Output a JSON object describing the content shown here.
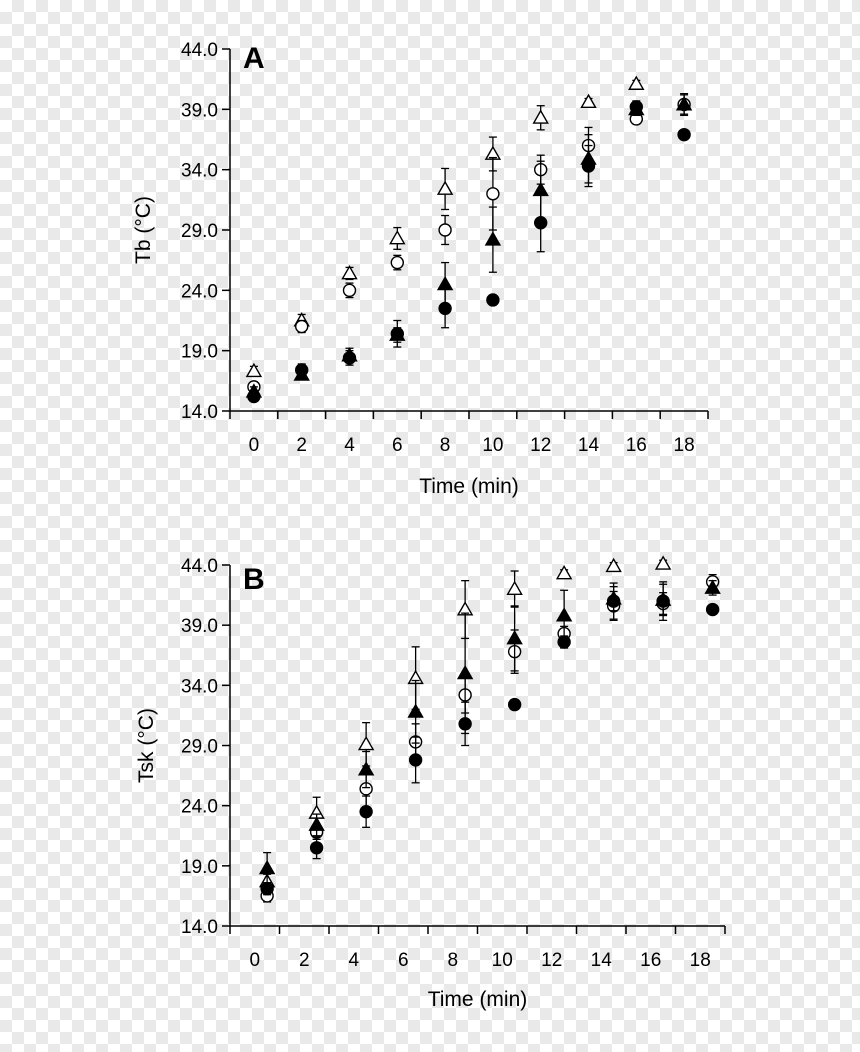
{
  "chart_data": [
    {
      "type": "scatter",
      "panel_label": "A",
      "title": "",
      "xlabel": "Time (min)",
      "ylabel": "Tb (°C)",
      "ylim": [
        14.0,
        44.0
      ],
      "xlim": [
        -1,
        19
      ],
      "x_ticks": [
        0,
        2,
        4,
        6,
        8,
        10,
        12,
        14,
        16,
        18
      ],
      "y_ticks": [
        "14.0",
        "19.0",
        "24.0",
        "29.0",
        "34.0",
        "39.0",
        "44.0"
      ],
      "grid": false,
      "legend": "none",
      "series": [
        {
          "marker": "open-triangle",
          "points": [
            {
              "x": 0,
              "y": 17.3,
              "err": 0.4
            },
            {
              "x": 2,
              "y": 21.5,
              "err": 0.5
            },
            {
              "x": 4,
              "y": 25.4,
              "err": 0.5
            },
            {
              "x": 6,
              "y": 28.3,
              "err": 0.9
            },
            {
              "x": 8,
              "y": 32.4,
              "err": 1.7
            },
            {
              "x": 10,
              "y": 35.3,
              "err": 1.4
            },
            {
              "x": 12,
              "y": 38.3,
              "err": 1.0
            },
            {
              "x": 14,
              "y": 39.6,
              "err": 0.3
            },
            {
              "x": 16,
              "y": 41.1,
              "err": 0.3
            }
          ]
        },
        {
          "marker": "open-circle",
          "points": [
            {
              "x": 0,
              "y": 16.0,
              "err": 0.4
            },
            {
              "x": 2,
              "y": 21.0,
              "err": 0.5
            },
            {
              "x": 4,
              "y": 24.0,
              "err": 0.6
            },
            {
              "x": 6,
              "y": 26.3,
              "err": 0.6
            },
            {
              "x": 8,
              "y": 29.0,
              "err": 1.2
            },
            {
              "x": 10,
              "y": 32.0,
              "err": 3.0
            },
            {
              "x": 12,
              "y": 34.0,
              "err": 1.2
            },
            {
              "x": 14,
              "y": 36.0,
              "err": 1.5
            },
            {
              "x": 16,
              "y": 38.2,
              "err": 0.4
            },
            {
              "x": 18,
              "y": 39.4,
              "err": 0.8
            }
          ]
        },
        {
          "marker": "filled-triangle",
          "points": [
            {
              "x": 0,
              "y": 15.6,
              "err": 0.4
            },
            {
              "x": 2,
              "y": 17.0,
              "err": 0.3
            },
            {
              "x": 4,
              "y": 18.6,
              "err": 0.6
            },
            {
              "x": 6,
              "y": 20.3,
              "err": 0.6
            },
            {
              "x": 8,
              "y": 24.5,
              "err": 1.8
            },
            {
              "x": 10,
              "y": 28.2,
              "err": 2.7
            },
            {
              "x": 12,
              "y": 32.3,
              "err": 2.4
            },
            {
              "x": 14,
              "y": 34.9,
              "err": 2.0
            },
            {
              "x": 16,
              "y": 39.0,
              "err": 0.5
            },
            {
              "x": 18,
              "y": 39.4,
              "err": 0.9
            }
          ]
        },
        {
          "marker": "filled-circle",
          "points": [
            {
              "x": 0,
              "y": 15.2,
              "err": 0.3
            },
            {
              "x": 2,
              "y": 17.4,
              "err": 0.5
            },
            {
              "x": 4,
              "y": 18.4,
              "err": 0.6
            },
            {
              "x": 6,
              "y": 20.4,
              "err": 1.1
            },
            {
              "x": 8,
              "y": 22.5,
              "err": 1.6
            },
            {
              "x": 10,
              "y": 23.2,
              "err": 0.3
            },
            {
              "x": 12,
              "y": 29.6,
              "err": 2.4
            },
            {
              "x": 14,
              "y": 34.3,
              "err": 1.7
            },
            {
              "x": 16,
              "y": 39.2,
              "err": 0.5
            },
            {
              "x": 18,
              "y": 36.9,
              "err": 0.3
            }
          ]
        }
      ]
    },
    {
      "type": "scatter",
      "panel_label": "B",
      "title": "",
      "xlabel": "Time (min)",
      "ylabel": "Tsk (°C)",
      "ylim": [
        14.0,
        44.0
      ],
      "xlim": [
        -1,
        19
      ],
      "x_ticks": [
        0,
        2,
        4,
        6,
        8,
        10,
        12,
        14,
        16,
        18
      ],
      "y_ticks": [
        "14.0",
        "19.0",
        "24.0",
        "29.0",
        "34.0",
        "39.0",
        "44.0"
      ],
      "grid": false,
      "legend": "none",
      "series": [
        {
          "marker": "open-triangle",
          "points": [
            {
              "x": 0.5,
              "y": 17.7,
              "err": 0.6
            },
            {
              "x": 2.5,
              "y": 23.4,
              "err": 1.3
            },
            {
              "x": 4.5,
              "y": 29.1,
              "err": 1.8
            },
            {
              "x": 6.5,
              "y": 34.6,
              "err": 2.6
            },
            {
              "x": 8.5,
              "y": 40.3,
              "err": 2.4
            },
            {
              "x": 10.5,
              "y": 42.0,
              "err": 1.5
            },
            {
              "x": 12.5,
              "y": 43.3,
              "err": 0.3
            },
            {
              "x": 14.5,
              "y": 43.9,
              "err": 0.3
            },
            {
              "x": 16.5,
              "y": 44.1,
              "err": 0.3
            }
          ]
        },
        {
          "marker": "open-circle",
          "points": [
            {
              "x": 0.5,
              "y": 16.5,
              "err": 0.5
            },
            {
              "x": 2.5,
              "y": 21.8,
              "err": 0.6
            },
            {
              "x": 4.5,
              "y": 25.4,
              "err": 1.5
            },
            {
              "x": 6.5,
              "y": 29.3,
              "err": 1.5
            },
            {
              "x": 8.5,
              "y": 33.2,
              "err": 1.5
            },
            {
              "x": 10.5,
              "y": 36.8,
              "err": 1.8
            },
            {
              "x": 12.5,
              "y": 38.3,
              "err": 0.6
            },
            {
              "x": 14.5,
              "y": 40.6,
              "err": 1.2
            },
            {
              "x": 16.5,
              "y": 40.8,
              "err": 0.9
            },
            {
              "x": 18.5,
              "y": 42.6,
              "err": 0.6
            }
          ]
        },
        {
          "marker": "filled-triangle",
          "points": [
            {
              "x": 0.5,
              "y": 18.8,
              "err": 1.3
            },
            {
              "x": 2.5,
              "y": 22.4,
              "err": 0.9
            },
            {
              "x": 4.5,
              "y": 27.0,
              "err": 1.5
            },
            {
              "x": 6.5,
              "y": 31.8,
              "err": 2.6
            },
            {
              "x": 8.5,
              "y": 35.0,
              "err": 5.0
            },
            {
              "x": 10.5,
              "y": 37.9,
              "err": 2.7
            },
            {
              "x": 12.5,
              "y": 39.8,
              "err": 2.1
            },
            {
              "x": 14.5,
              "y": 41.2,
              "err": 1.0
            },
            {
              "x": 16.5,
              "y": 41.1,
              "err": 1.3
            },
            {
              "x": 18.5,
              "y": 42.1,
              "err": 0.6
            }
          ]
        },
        {
          "marker": "filled-circle",
          "points": [
            {
              "x": 0.5,
              "y": 17.1,
              "err": 0.5
            },
            {
              "x": 2.5,
              "y": 20.5,
              "err": 0.9
            },
            {
              "x": 4.5,
              "y": 23.5,
              "err": 1.3
            },
            {
              "x": 6.5,
              "y": 27.8,
              "err": 1.9
            },
            {
              "x": 8.5,
              "y": 30.8,
              "err": 1.8
            },
            {
              "x": 10.5,
              "y": 32.4,
              "err": 0.4
            },
            {
              "x": 12.5,
              "y": 37.6,
              "err": 0.5
            },
            {
              "x": 14.5,
              "y": 41.0,
              "err": 1.5
            },
            {
              "x": 16.5,
              "y": 41.0,
              "err": 1.6
            },
            {
              "x": 18.5,
              "y": 40.3,
              "err": 0.3
            }
          ]
        }
      ]
    }
  ]
}
